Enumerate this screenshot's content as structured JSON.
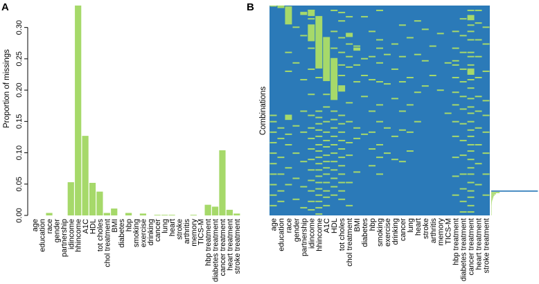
{
  "chart_data": [
    {
      "type": "bar",
      "panel_label": "A",
      "ylabel": "Proportion of missings",
      "ylim": [
        0,
        0.335
      ],
      "yticks": [
        "0.00",
        "0.05",
        "0.10",
        "0.15",
        "0.20",
        "0.25",
        "0.30"
      ],
      "categories": [
        "age",
        "education",
        "race",
        "gender",
        "partnership",
        "idincome",
        "hhincome",
        "A1C",
        "HDL",
        "tot choles",
        "chol treatment",
        "BMI",
        "diabetes",
        "hbp",
        "smoking",
        "exercise",
        "drinking",
        "cancer",
        "lung",
        "heart",
        "stroke",
        "arthritis",
        "memory",
        "TICS-M",
        "hbp treatment",
        "diabetes treatment",
        "cancer treatment",
        "heart treatment",
        "stroke treatment"
      ],
      "values": [
        0.0,
        0.0,
        0.004,
        0.0,
        0.0,
        0.053,
        0.335,
        0.127,
        0.052,
        0.038,
        0.004,
        0.011,
        0.0,
        0.004,
        0.0,
        0.003,
        0.0,
        0.001,
        0.001,
        0.001,
        0.0,
        0.0,
        0.001,
        0.0,
        0.017,
        0.014,
        0.104,
        0.009,
        0.003
      ],
      "color": "#a6d96a"
    },
    {
      "type": "heatmap",
      "panel_label": "B",
      "ylabel": "Combinations",
      "columns": [
        "age",
        "education",
        "race",
        "gender",
        "partnership",
        "idincome",
        "hhincome",
        "A1C",
        "HDL",
        "tot choles",
        "chol treatment",
        "BMI",
        "diabetes",
        "hbp",
        "smoking",
        "exercise",
        "drinking",
        "cancer",
        "lung",
        "heart",
        "stroke",
        "arthritis",
        "memory",
        "TICS-M",
        "hbp treatment",
        "diabetes treatment",
        "cancer treatment",
        "heart treatment",
        "stroke treatment"
      ],
      "present_color": "#2b7ab8",
      "missing_color": "#a6d96a",
      "missing_blocks": [
        {
          "col": 0,
          "from": 0,
          "to": 0.004
        },
        {
          "col": 1,
          "from": 0,
          "to": 0.012
        },
        {
          "col": 2,
          "from": 0.004,
          "to": 0.09
        },
        {
          "col": 2,
          "from": 0.52,
          "to": 0.545
        },
        {
          "col": 4,
          "from": 0.03,
          "to": 0.045
        },
        {
          "col": 5,
          "from": 0.02,
          "to": 0.05
        },
        {
          "col": 5,
          "from": 0.09,
          "to": 0.17
        },
        {
          "col": 6,
          "from": 0.05,
          "to": 0.3
        },
        {
          "col": 7,
          "from": 0.15,
          "to": 0.36
        },
        {
          "col": 8,
          "from": 0.25,
          "to": 0.45
        },
        {
          "col": 9,
          "from": 0.38,
          "to": 0.41
        },
        {
          "col": 10,
          "from": 0.13,
          "to": 0.15
        },
        {
          "col": 11,
          "from": 0.2,
          "to": 0.215
        },
        {
          "col": 26,
          "from": 0.045,
          "to": 0.07
        },
        {
          "col": 26,
          "from": 0.3,
          "to": 0.33
        }
      ],
      "missing_ticks": [
        [
          0.52,
          0.55,
          0.6,
          0.65,
          0.7,
          0.75,
          0.8,
          0.85,
          0.9,
          0.95
        ],
        [
          0.58,
          0.63,
          0.72,
          0.8,
          0.88,
          0.93
        ],
        [
          0.22,
          0.31,
          0.61,
          0.66,
          0.77,
          0.85
        ],
        [
          0.1,
          0.27,
          0.57,
          0.7,
          0.82,
          0.92
        ],
        [
          0.14,
          0.35,
          0.5,
          0.6,
          0.74,
          0.86,
          0.96
        ],
        [
          0.02,
          0.06,
          0.2,
          0.3,
          0.42,
          0.52,
          0.58,
          0.63,
          0.68,
          0.73,
          0.78,
          0.83,
          0.88,
          0.93,
          0.97
        ],
        [
          0.34,
          0.5,
          0.53,
          0.56,
          0.59,
          0.62,
          0.66,
          0.69,
          0.72,
          0.75,
          0.78,
          0.81,
          0.84,
          0.87,
          0.9,
          0.93,
          0.96,
          0.99
        ],
        [
          0.42,
          0.48,
          0.55,
          0.6,
          0.64,
          0.67,
          0.71,
          0.74,
          0.77,
          0.8,
          0.84,
          0.88,
          0.91,
          0.95
        ],
        [
          0.02,
          0.12,
          0.2,
          0.5,
          0.54,
          0.58,
          0.62,
          0.66,
          0.7,
          0.74,
          0.78,
          0.82,
          0.86,
          0.9
        ],
        [
          0.03,
          0.07,
          0.15,
          0.22,
          0.28,
          0.33,
          0.52,
          0.56,
          0.6,
          0.64,
          0.68,
          0.72,
          0.76,
          0.8,
          0.84,
          0.88,
          0.92
        ],
        [
          0.05,
          0.18,
          0.24,
          0.29,
          0.46,
          0.55,
          0.65,
          0.71,
          0.84,
          0.95
        ],
        [
          0.19,
          0.28,
          0.36,
          0.58,
          0.63,
          0.79
        ],
        [
          0.05,
          0.25,
          0.33,
          0.43,
          0.61
        ],
        [
          0.12,
          0.24,
          0.35,
          0.5,
          0.6,
          0.68,
          0.76
        ],
        [
          0.02,
          0.16,
          0.2,
          0.27,
          0.36,
          0.47,
          0.55,
          0.66,
          0.72,
          0.8
        ],
        [
          0.23,
          0.37,
          0.58,
          0.7
        ],
        [
          0.18,
          0.3,
          0.44,
          0.62,
          0.73
        ],
        [
          0.09,
          0.24,
          0.36,
          0.5,
          0.59,
          0.74
        ],
        [
          0.15,
          0.34,
          0.47,
          0.6,
          0.69
        ],
        [
          0.07,
          0.23,
          0.41,
          0.55
        ],
        [
          0.11,
          0.26,
          0.38
        ],
        [
          0.19,
          0.33
        ],
        [
          0.13,
          0.4
        ],
        [
          0.27,
          0.51
        ],
        [
          0.12,
          0.2,
          0.26,
          0.28,
          0.34,
          0.41,
          0.47,
          0.55,
          0.62,
          0.72,
          0.81,
          0.9
        ],
        [
          0.06,
          0.14,
          0.22,
          0.3,
          0.36,
          0.43,
          0.49,
          0.56,
          0.64,
          0.71,
          0.8,
          0.87,
          0.93,
          0.98
        ],
        [
          0.02,
          0.09,
          0.12,
          0.16,
          0.22,
          0.24,
          0.28,
          0.35,
          0.39,
          0.44,
          0.48,
          0.51,
          0.55,
          0.59,
          0.62,
          0.66,
          0.69,
          0.73,
          0.77,
          0.8,
          0.84,
          0.88,
          0.91,
          0.95,
          0.98
        ],
        [
          0.02,
          0.08,
          0.16,
          0.24,
          0.34,
          0.43,
          0.5,
          0.58,
          0.66,
          0.75,
          0.85
        ],
        [
          0.1,
          0.18,
          0.31,
          0.45,
          0.52,
          0.6,
          0.7,
          0.8,
          0.9
        ]
      ],
      "combination_frequencies": [
        0.99,
        0.18,
        0.1,
        0.07,
        0.05,
        0.04,
        0.03,
        0.02,
        0.015,
        0.012,
        0.01,
        0.008,
        0.006,
        0.005,
        0.004,
        0.003,
        0.002,
        0.002
      ]
    }
  ]
}
